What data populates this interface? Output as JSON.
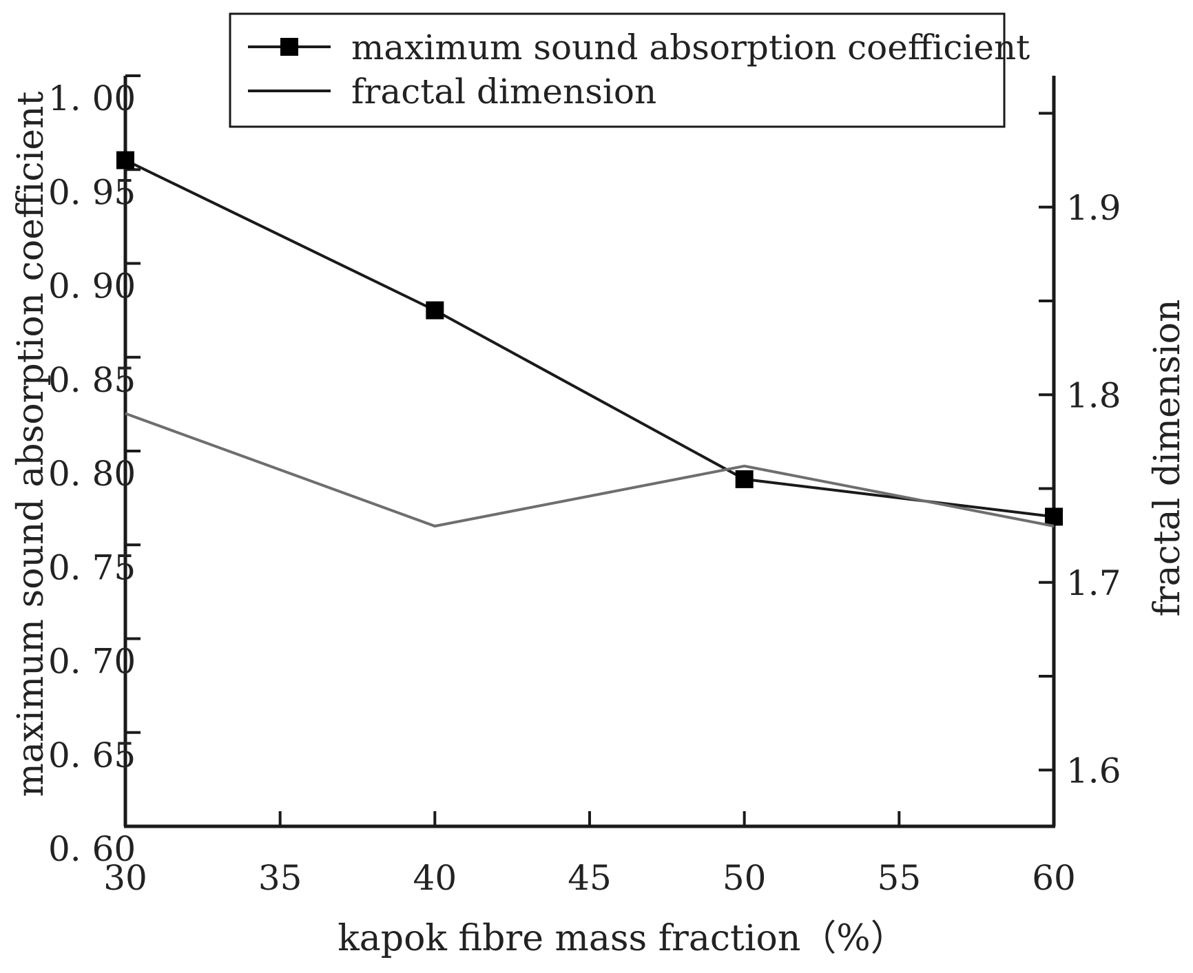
{
  "chart_data": {
    "type": "line",
    "title": "",
    "xlabel": "kapok fibre mass fraction（%）",
    "ylabel": "maximum sound absorption coefficient",
    "y2label": "fractal dimension",
    "x_ticks": [
      "30",
      "35",
      "40",
      "45",
      "50",
      "55",
      "60"
    ],
    "y_ticks": [
      "0. 60",
      "0. 65",
      "0. 70",
      "0. 75",
      "0. 80",
      "0. 85",
      "0. 90",
      "0. 95",
      "1. 00"
    ],
    "y2_ticks": [
      "1.6",
      "1.7",
      "1.8",
      "1.9"
    ],
    "xlim": [
      30,
      60
    ],
    "ylim": [
      0.6,
      1.0
    ],
    "y2lim": [
      1.57,
      1.97
    ],
    "grid": false,
    "legend_position": "top-center",
    "series": [
      {
        "name": "maximum sound absorption coefficient",
        "axis": "left",
        "marker": "square",
        "color": "#1a1a1a",
        "x": [
          30,
          40,
          50,
          60
        ],
        "values": [
          0.955,
          0.875,
          0.785,
          0.765
        ]
      },
      {
        "name": "fractal dimension",
        "axis": "right",
        "marker": "none",
        "color": "#6e6e6e",
        "x": [
          30,
          40,
          50,
          60
        ],
        "values": [
          1.79,
          1.73,
          1.762,
          1.73
        ]
      }
    ]
  }
}
